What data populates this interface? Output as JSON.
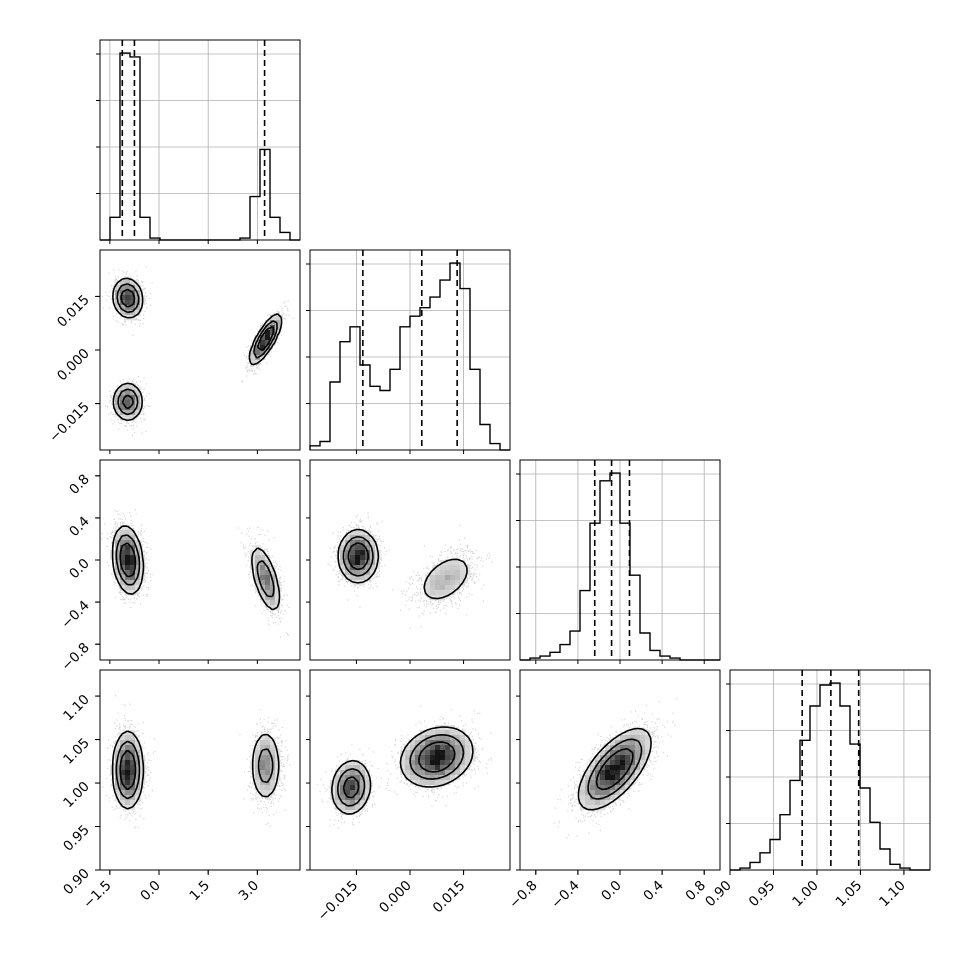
{
  "chart_data": {
    "type": "corner",
    "title": "",
    "parameters": [
      {
        "label": "",
        "range": [
          -1.8,
          4.3
        ],
        "ticks": [
          -1.5,
          0.0,
          1.5,
          3.0
        ],
        "tick_labels": [
          "−1.5",
          "0.0",
          "1.5",
          "3.0"
        ]
      },
      {
        "label": "",
        "range": [
          -0.028,
          0.028
        ],
        "ticks": [
          -0.015,
          0.0,
          0.015
        ],
        "tick_labels": [
          "−0.015",
          "0.000",
          "0.015"
        ]
      },
      {
        "label": "",
        "range": [
          -0.95,
          0.95
        ],
        "ticks": [
          -0.8,
          -0.4,
          0.0,
          0.4,
          0.8
        ],
        "tick_labels": [
          "−0.8",
          "−0.4",
          "0.0",
          "0.4",
          "0.8"
        ]
      },
      {
        "label": "",
        "range": [
          0.9,
          1.13
        ],
        "ticks": [
          0.9,
          0.95,
          1.0,
          1.05,
          1.1
        ],
        "tick_labels": [
          "0.90",
          "0.95",
          "1.00",
          "1.05",
          "1.10"
        ]
      }
    ],
    "marginals": [
      {
        "param": 0,
        "bin_start": -1.8,
        "bin_width": 0.305,
        "counts": [
          0,
          0.12,
          0.99,
          0.97,
          0.12,
          0.01,
          0,
          0,
          0,
          0,
          0,
          0,
          0,
          0,
          0.01,
          0.23,
          0.48,
          0.12,
          0.04,
          0
        ],
        "quantiles": [
          -1.12,
          -0.75,
          3.22
        ]
      },
      {
        "param": 1,
        "bin_start": -0.028,
        "bin_width": 0.0028,
        "counts": [
          0.02,
          0.04,
          0.32,
          0.51,
          0.58,
          0.4,
          0.3,
          0.28,
          0.38,
          0.58,
          0.63,
          0.67,
          0.72,
          0.8,
          0.88,
          0.76,
          0.38,
          0.12,
          0.03,
          0
        ],
        "quantiles": [
          -0.0132,
          0.0033,
          0.0132
        ]
      },
      {
        "param": 2,
        "bin_start": -0.95,
        "bin_width": 0.095,
        "counts": [
          0,
          0.01,
          0.02,
          0.04,
          0.08,
          0.15,
          0.36,
          0.71,
          0.93,
          0.97,
          0.71,
          0.44,
          0.14,
          0.05,
          0.02,
          0.01,
          0,
          0,
          0,
          0
        ],
        "quantiles": [
          -0.24,
          -0.08,
          0.09
        ]
      },
      {
        "param": 3,
        "bin_start": 0.9,
        "bin_width": 0.0115,
        "counts": [
          0,
          0.01,
          0.04,
          0.09,
          0.16,
          0.29,
          0.47,
          0.68,
          0.86,
          0.97,
          0.98,
          0.86,
          0.66,
          0.43,
          0.25,
          0.11,
          0.03,
          0.01,
          0,
          0
        ],
        "quantiles": [
          0.983,
          1.016,
          1.048
        ]
      }
    ],
    "joints": [
      {
        "row": 1,
        "col": 0,
        "clusters": [
          {
            "mx": -0.95,
            "my": 0.0145,
            "sx": 0.23,
            "sy": 0.0028,
            "rho": -0.1,
            "w": 0.36
          },
          {
            "mx": -0.95,
            "my": -0.0145,
            "sx": 0.23,
            "sy": 0.0027,
            "rho": 0.0,
            "w": 0.3
          },
          {
            "mx": 3.25,
            "my": 0.003,
            "sx": 0.24,
            "sy": 0.0035,
            "rho": 0.78,
            "w": 0.34
          }
        ]
      },
      {
        "row": 2,
        "col": 0,
        "clusters": [
          {
            "mx": -0.95,
            "my": 0.0,
            "sx": 0.23,
            "sy": 0.16,
            "rho": -0.2,
            "w": 0.66
          },
          {
            "mx": 3.25,
            "my": -0.18,
            "sx": 0.24,
            "sy": 0.17,
            "rho": -0.6,
            "w": 0.34
          }
        ]
      },
      {
        "row": 2,
        "col": 1,
        "clusters": [
          {
            "mx": -0.0145,
            "my": 0.04,
            "sx": 0.0028,
            "sy": 0.12,
            "rho": 0.0,
            "w": 0.36
          },
          {
            "mx": -0.0145,
            "my": 0.03,
            "sx": 0.0027,
            "sy": 0.13,
            "rho": 0.0,
            "w": 0.3
          },
          {
            "mx": 0.01,
            "my": -0.18,
            "sx": 0.0045,
            "sy": 0.14,
            "rho": 0.45,
            "w": 0.34
          }
        ]
      },
      {
        "row": 3,
        "col": 0,
        "clusters": [
          {
            "mx": -0.95,
            "my": 1.015,
            "sx": 0.23,
            "sy": 0.022,
            "rho": 0.0,
            "w": 0.66
          },
          {
            "mx": 3.25,
            "my": 1.02,
            "sx": 0.24,
            "sy": 0.022,
            "rho": 0.0,
            "w": 0.34
          }
        ]
      },
      {
        "row": 3,
        "col": 1,
        "clusters": [
          {
            "mx": -0.0165,
            "my": 0.995,
            "sx": 0.0028,
            "sy": 0.016,
            "rho": 0.1,
            "w": 0.3
          },
          {
            "mx": 0.0075,
            "my": 1.03,
            "sx": 0.005,
            "sy": 0.017,
            "rho": 0.2,
            "w": 0.7
          }
        ]
      },
      {
        "row": 3,
        "col": 2,
        "clusters": [
          {
            "mx": -0.05,
            "my": 1.016,
            "sx": 0.17,
            "sy": 0.023,
            "rho": 0.65,
            "w": 1.0
          }
        ]
      }
    ],
    "grid": true,
    "legend": "none"
  }
}
